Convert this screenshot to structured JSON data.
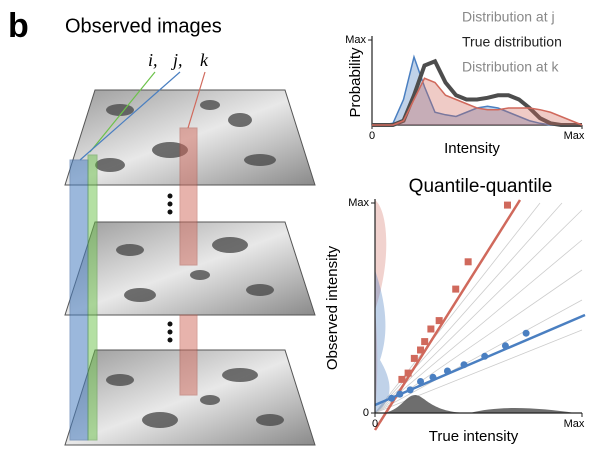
{
  "panel_label": "b",
  "images": {
    "title": "Observed images",
    "labels": [
      "i,",
      "j,",
      "k"
    ]
  },
  "chart_data": [
    {
      "type": "line",
      "xlabel": "Intensity",
      "ylabel": "Probability",
      "xlim": [
        0,
        1
      ],
      "ylim": [
        0,
        1
      ],
      "xticks": [
        0,
        {
          "value": 1,
          "label": "Max"
        }
      ],
      "yticks": [
        {
          "value": 1,
          "label": "Max"
        }
      ],
      "x": [
        0,
        0.05,
        0.1,
        0.15,
        0.2,
        0.25,
        0.3,
        0.35,
        0.4,
        0.45,
        0.5,
        0.55,
        0.6,
        0.65,
        0.7,
        0.75,
        0.8,
        0.85,
        0.9,
        0.95,
        1
      ],
      "series": [
        {
          "name": "Distribution at j",
          "color": "#4a7fc1",
          "values": [
            0,
            0,
            0.02,
            0.3,
            0.8,
            0.45,
            0.15,
            0.12,
            0.1,
            0.15,
            0.2,
            0.22,
            0.2,
            0.15,
            0.1,
            0.05,
            0.02,
            0,
            0,
            0,
            0
          ]
        },
        {
          "name": "True distribution",
          "color": "#4d4d4d",
          "values": [
            0,
            0,
            0,
            0.05,
            0.35,
            0.7,
            0.75,
            0.5,
            0.35,
            0.3,
            0.3,
            0.32,
            0.35,
            0.35,
            0.3,
            0.2,
            0.08,
            0.02,
            0,
            0,
            0
          ]
        },
        {
          "name": "Distribution at k",
          "color": "#d0695c",
          "values": [
            0,
            0,
            0,
            0.05,
            0.3,
            0.55,
            0.5,
            0.35,
            0.3,
            0.25,
            0.2,
            0.18,
            0.18,
            0.2,
            0.2,
            0.2,
            0.18,
            0.15,
            0.1,
            0.05,
            0
          ]
        }
      ]
    },
    {
      "type": "scatter",
      "title": "Quantile-quantile",
      "xlabel": "True intensity",
      "ylabel": "Observed intensity",
      "xlim": [
        0,
        1
      ],
      "ylim": [
        0,
        1
      ],
      "xticks": [
        0,
        {
          "value": 1,
          "label": "Max"
        }
      ],
      "yticks": [
        0,
        {
          "value": 1,
          "label": "Max"
        }
      ],
      "series": [
        {
          "color": "#d0695c",
          "marker": "square",
          "x": [
            0.13,
            0.16,
            0.19,
            0.22,
            0.24,
            0.27,
            0.31,
            0.39,
            0.45,
            0.64
          ],
          "values": [
            0.16,
            0.19,
            0.26,
            0.3,
            0.34,
            0.4,
            0.44,
            0.59,
            0.72,
            0.99
          ]
        },
        {
          "color": "#4a7fc1",
          "marker": "circle",
          "x": [
            0.08,
            0.12,
            0.17,
            0.22,
            0.28,
            0.35,
            0.43,
            0.53,
            0.63,
            0.73
          ],
          "values": [
            0.07,
            0.09,
            0.11,
            0.15,
            0.17,
            0.2,
            0.23,
            0.27,
            0.32,
            0.38
          ]
        }
      ]
    }
  ]
}
